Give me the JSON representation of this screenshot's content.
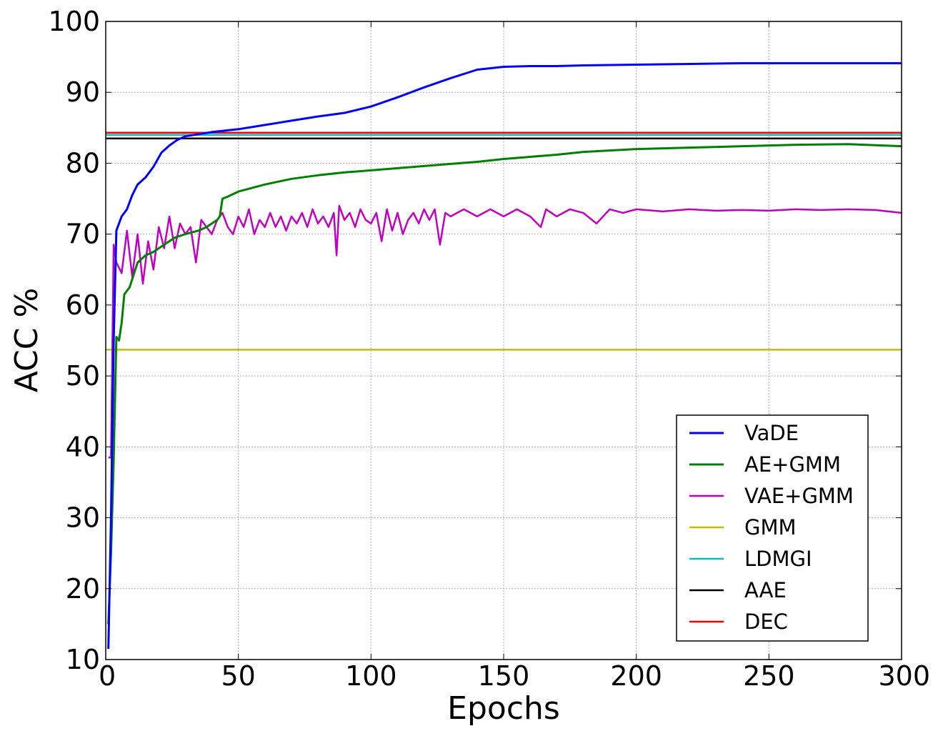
{
  "chart_data": {
    "type": "line",
    "xlabel": "Epochs",
    "ylabel": "ACC %",
    "xlim": [
      0,
      300
    ],
    "ylim": [
      10,
      100
    ],
    "xticks": [
      "0",
      "50",
      "100",
      "150",
      "200",
      "250",
      "300"
    ],
    "yticks": [
      "10",
      "20",
      "30",
      "40",
      "50",
      "60",
      "70",
      "80",
      "90",
      "100"
    ],
    "grid": true,
    "legend_position": "bottom-right",
    "series": [
      {
        "name": "VaDE",
        "color": "#0000ff",
        "points": [
          [
            1,
            11.5
          ],
          [
            2,
            30
          ],
          [
            3,
            55
          ],
          [
            4,
            70.5
          ],
          [
            6,
            72.5
          ],
          [
            8,
            73.5
          ],
          [
            10,
            75.5
          ],
          [
            12,
            77
          ],
          [
            15,
            78
          ],
          [
            18,
            79.5
          ],
          [
            21,
            81.5
          ],
          [
            24,
            82.5
          ],
          [
            27,
            83.3
          ],
          [
            30,
            83.8
          ],
          [
            35,
            84.1
          ],
          [
            40,
            84.4
          ],
          [
            45,
            84.6
          ],
          [
            50,
            84.8
          ],
          [
            60,
            85.4
          ],
          [
            70,
            86
          ],
          [
            80,
            86.6
          ],
          [
            90,
            87.1
          ],
          [
            100,
            88
          ],
          [
            110,
            89.3
          ],
          [
            120,
            90.7
          ],
          [
            130,
            92
          ],
          [
            140,
            93.2
          ],
          [
            150,
            93.6
          ],
          [
            160,
            93.7
          ],
          [
            170,
            93.7
          ],
          [
            180,
            93.8
          ],
          [
            200,
            93.9
          ],
          [
            220,
            94
          ],
          [
            240,
            94.1
          ],
          [
            260,
            94.1
          ],
          [
            280,
            94.1
          ],
          [
            300,
            94.1
          ]
        ]
      },
      {
        "name": "AE+GMM",
        "color": "#008000",
        "points": [
          [
            1,
            15
          ],
          [
            2,
            25
          ],
          [
            3,
            38
          ],
          [
            4,
            55.5
          ],
          [
            5,
            55
          ],
          [
            6,
            57.5
          ],
          [
            7,
            61.5
          ],
          [
            9,
            62.5
          ],
          [
            12,
            66
          ],
          [
            15,
            67
          ],
          [
            18,
            67.5
          ],
          [
            22,
            68.5
          ],
          [
            26,
            69.5
          ],
          [
            30,
            70
          ],
          [
            35,
            70.5
          ],
          [
            38,
            71
          ],
          [
            42,
            72
          ],
          [
            43,
            72.5
          ],
          [
            44,
            75
          ],
          [
            46,
            75.3
          ],
          [
            50,
            76
          ],
          [
            60,
            77
          ],
          [
            70,
            77.8
          ],
          [
            80,
            78.3
          ],
          [
            90,
            78.7
          ],
          [
            100,
            79
          ],
          [
            110,
            79.3
          ],
          [
            120,
            79.6
          ],
          [
            130,
            79.9
          ],
          [
            140,
            80.2
          ],
          [
            150,
            80.6
          ],
          [
            160,
            80.9
          ],
          [
            170,
            81.2
          ],
          [
            180,
            81.6
          ],
          [
            190,
            81.8
          ],
          [
            200,
            82
          ],
          [
            220,
            82.2
          ],
          [
            240,
            82.4
          ],
          [
            260,
            82.6
          ],
          [
            280,
            82.7
          ],
          [
            300,
            82.4
          ]
        ]
      },
      {
        "name": "VAE+GMM",
        "color": "#bf00bf",
        "points": [
          [
            1,
            38.5
          ],
          [
            2,
            38.5
          ],
          [
            3,
            68.5
          ],
          [
            4,
            66
          ],
          [
            6,
            64.5
          ],
          [
            8,
            70.5
          ],
          [
            10,
            64
          ],
          [
            12,
            70
          ],
          [
            14,
            63
          ],
          [
            16,
            69
          ],
          [
            18,
            65
          ],
          [
            20,
            71
          ],
          [
            22,
            68
          ],
          [
            24,
            72.5
          ],
          [
            26,
            68
          ],
          [
            28,
            71.5
          ],
          [
            30,
            70
          ],
          [
            32,
            71
          ],
          [
            34,
            66
          ],
          [
            36,
            72
          ],
          [
            38,
            71
          ],
          [
            40,
            70
          ],
          [
            42,
            72
          ],
          [
            44,
            73
          ],
          [
            46,
            71
          ],
          [
            48,
            70
          ],
          [
            50,
            72.5
          ],
          [
            52,
            71
          ],
          [
            54,
            73.5
          ],
          [
            56,
            70
          ],
          [
            58,
            72
          ],
          [
            60,
            71
          ],
          [
            62,
            73
          ],
          [
            64,
            71
          ],
          [
            66,
            72.5
          ],
          [
            68,
            70.5
          ],
          [
            70,
            72.5
          ],
          [
            72,
            71.5
          ],
          [
            74,
            73
          ],
          [
            76,
            71
          ],
          [
            78,
            73.5
          ],
          [
            80,
            71.5
          ],
          [
            82,
            72.5
          ],
          [
            84,
            71
          ],
          [
            86,
            73
          ],
          [
            87,
            67
          ],
          [
            88,
            74
          ],
          [
            90,
            72
          ],
          [
            92,
            73
          ],
          [
            94,
            71
          ],
          [
            96,
            73.5
          ],
          [
            98,
            72
          ],
          [
            100,
            71.5
          ],
          [
            102,
            73
          ],
          [
            104,
            69
          ],
          [
            106,
            73.5
          ],
          [
            108,
            70.5
          ],
          [
            110,
            73
          ],
          [
            112,
            70
          ],
          [
            114,
            72
          ],
          [
            116,
            73
          ],
          [
            118,
            71.5
          ],
          [
            120,
            73.5
          ],
          [
            122,
            72
          ],
          [
            124,
            73.5
          ],
          [
            126,
            68.5
          ],
          [
            128,
            73
          ],
          [
            130,
            72.5
          ],
          [
            135,
            73.5
          ],
          [
            140,
            72.5
          ],
          [
            145,
            73.5
          ],
          [
            150,
            72.5
          ],
          [
            155,
            73.5
          ],
          [
            160,
            72.5
          ],
          [
            164,
            71
          ],
          [
            166,
            73.5
          ],
          [
            170,
            72.5
          ],
          [
            175,
            73.5
          ],
          [
            180,
            73
          ],
          [
            185,
            71.5
          ],
          [
            190,
            73.5
          ],
          [
            195,
            73
          ],
          [
            200,
            73.5
          ],
          [
            210,
            73.2
          ],
          [
            220,
            73.5
          ],
          [
            230,
            73.3
          ],
          [
            240,
            73.4
          ],
          [
            250,
            73.3
          ],
          [
            260,
            73.5
          ],
          [
            270,
            73.4
          ],
          [
            280,
            73.5
          ],
          [
            290,
            73.4
          ],
          [
            300,
            73
          ]
        ]
      },
      {
        "name": "GMM",
        "color": "#bfbf00",
        "points": [
          [
            0,
            53.7
          ],
          [
            300,
            53.7
          ]
        ]
      },
      {
        "name": "LDMGI",
        "color": "#00bfbf",
        "points": [
          [
            0,
            84
          ],
          [
            300,
            84
          ]
        ]
      },
      {
        "name": "AAE",
        "color": "#000000",
        "points": [
          [
            0,
            83.5
          ],
          [
            300,
            83.5
          ]
        ]
      },
      {
        "name": "DEC",
        "color": "#ff0000",
        "points": [
          [
            0,
            84.3
          ],
          [
            300,
            84.3
          ]
        ]
      }
    ]
  }
}
